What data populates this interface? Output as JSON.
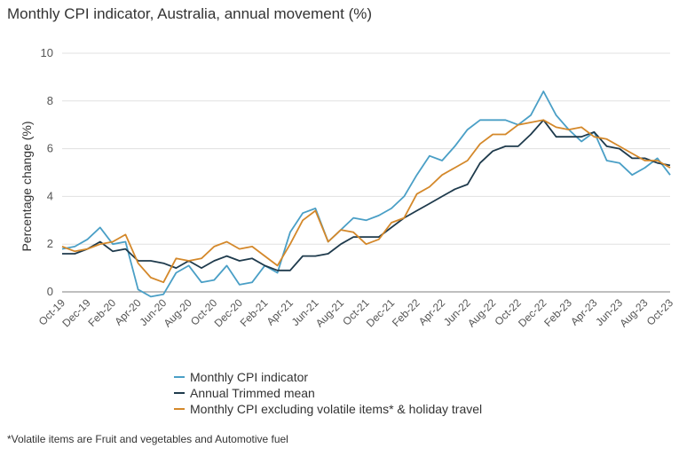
{
  "chart_data": {
    "type": "line",
    "title": "Monthly CPI indicator, Australia, annual movement (%)",
    "xlabel": "",
    "ylabel": "Percentage change (%)",
    "ylim": [
      0,
      10
    ],
    "yticks": [
      "0",
      "2",
      "4",
      "6",
      "8",
      "10"
    ],
    "x_tick_labels": [
      "Oct-19",
      "Dec-19",
      "Feb-20",
      "Apr-20",
      "Jun-20",
      "Aug-20",
      "Oct-20",
      "Dec-20",
      "Feb-21",
      "Apr-21",
      "Jun-21",
      "Aug-21",
      "Oct-21",
      "Dec-21",
      "Feb-22",
      "Apr-22",
      "Jun-22",
      "Aug-22",
      "Oct-22",
      "Dec-22",
      "Feb-23",
      "Apr-23",
      "Jun-23",
      "Aug-23",
      "Oct-23"
    ],
    "x": [
      "Oct-19",
      "Nov-19",
      "Dec-19",
      "Jan-20",
      "Feb-20",
      "Mar-20",
      "Apr-20",
      "May-20",
      "Jun-20",
      "Jul-20",
      "Aug-20",
      "Sep-20",
      "Oct-20",
      "Nov-20",
      "Dec-20",
      "Jan-21",
      "Feb-21",
      "Mar-21",
      "Apr-21",
      "May-21",
      "Jun-21",
      "Jul-21",
      "Aug-21",
      "Sep-21",
      "Oct-21",
      "Nov-21",
      "Dec-21",
      "Jan-22",
      "Feb-22",
      "Mar-22",
      "Apr-22",
      "May-22",
      "Jun-22",
      "Jul-22",
      "Aug-22",
      "Sep-22",
      "Oct-22",
      "Nov-22",
      "Dec-22",
      "Jan-23",
      "Feb-23",
      "Mar-23",
      "Apr-23",
      "May-23",
      "Jun-23",
      "Jul-23",
      "Aug-23",
      "Sep-23",
      "Oct-23"
    ],
    "grid": "horizontal",
    "legend_position": "bottom",
    "series": [
      {
        "name": "Monthly CPI indicator",
        "color": "#4a9fc6",
        "values": [
          1.8,
          1.9,
          2.2,
          2.7,
          2.0,
          2.1,
          0.1,
          -0.2,
          -0.1,
          0.8,
          1.1,
          0.4,
          0.5,
          1.1,
          0.3,
          0.4,
          1.1,
          0.8,
          2.5,
          3.3,
          3.5,
          2.1,
          2.6,
          3.1,
          3.0,
          3.2,
          3.5,
          4.0,
          4.9,
          5.7,
          5.5,
          6.1,
          6.8,
          7.2,
          7.2,
          7.2,
          7.0,
          7.4,
          8.4,
          7.4,
          6.8,
          6.3,
          6.7,
          5.5,
          5.4,
          4.9,
          5.2,
          5.6,
          4.9
        ]
      },
      {
        "name": "Annual Trimmed mean",
        "color": "#1e3a4c",
        "values": [
          1.6,
          1.6,
          1.8,
          2.1,
          1.7,
          1.8,
          1.3,
          1.3,
          1.2,
          1.0,
          1.3,
          1.0,
          1.3,
          1.5,
          1.3,
          1.4,
          1.1,
          0.9,
          0.9,
          1.5,
          1.5,
          1.6,
          2.0,
          2.3,
          2.3,
          2.3,
          2.7,
          3.1,
          3.4,
          3.7,
          4.0,
          4.3,
          4.5,
          5.4,
          5.9,
          6.1,
          6.1,
          6.6,
          7.2,
          6.5,
          6.5,
          6.5,
          6.7,
          6.1,
          6.0,
          5.6,
          5.6,
          5.4,
          5.3
        ]
      },
      {
        "name": "Monthly CPI excluding volatile items* & holiday travel",
        "color": "#d4882a",
        "values": [
          1.9,
          1.7,
          1.8,
          2.0,
          2.1,
          2.4,
          1.2,
          0.6,
          0.4,
          1.4,
          1.3,
          1.4,
          1.9,
          2.1,
          1.8,
          1.9,
          1.5,
          1.1,
          2.0,
          3.0,
          3.4,
          2.1,
          2.6,
          2.5,
          2.0,
          2.2,
          2.9,
          3.1,
          4.1,
          4.4,
          4.9,
          5.2,
          5.5,
          6.2,
          6.6,
          6.6,
          7.0,
          7.1,
          7.2,
          6.9,
          6.8,
          6.9,
          6.5,
          6.4,
          6.1,
          5.8,
          5.5,
          5.5,
          5.2
        ]
      }
    ],
    "footnote": "*Volatile items are Fruit and vegetables and Automotive fuel"
  }
}
